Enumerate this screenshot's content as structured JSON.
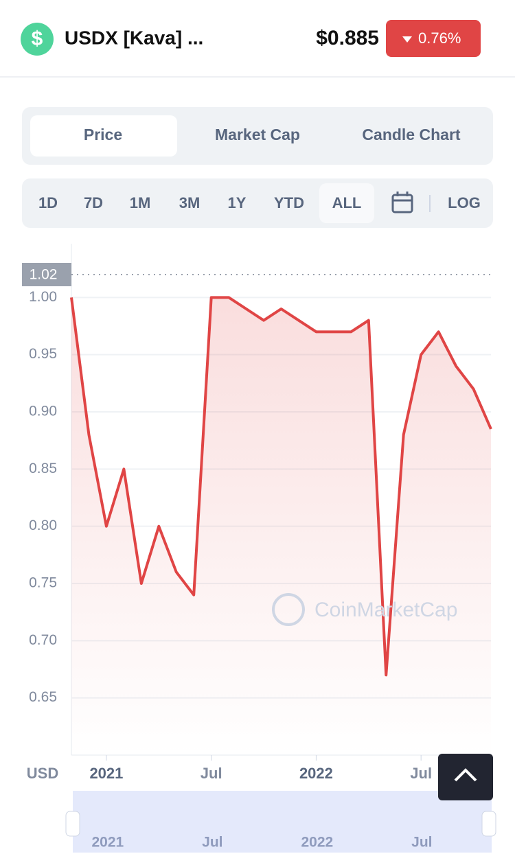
{
  "header": {
    "name": "USDX [Kava] ...",
    "price": "$0.885",
    "change": "0.76%"
  },
  "tabs": [
    "Price",
    "Market Cap",
    "Candle Chart"
  ],
  "ranges": [
    "1D",
    "7D",
    "1M",
    "3M",
    "1Y",
    "YTD",
    "ALL"
  ],
  "log_label": "LOG",
  "currency": "USD",
  "watermark": "CoinMarketCap",
  "chart_data": {
    "type": "line",
    "x": [
      "2020-11",
      "2020-12",
      "2021-01",
      "2021-02",
      "2021-03",
      "2021-04",
      "2021-05",
      "2021-06",
      "2021-07",
      "2021-08",
      "2021-09",
      "2021-10",
      "2021-11",
      "2021-12",
      "2022-01",
      "2022-02",
      "2022-03",
      "2022-04",
      "2022-05",
      "2022-06",
      "2022-07",
      "2022-08",
      "2022-09",
      "2022-10",
      "2022-11"
    ],
    "series": [
      {
        "name": "Price",
        "color": "#e04545",
        "values": [
          1.0,
          0.88,
          0.8,
          0.85,
          0.75,
          0.8,
          0.76,
          0.74,
          1.0,
          1.0,
          0.99,
          0.98,
          0.99,
          0.98,
          0.97,
          0.97,
          0.97,
          0.98,
          0.67,
          0.88,
          0.95,
          0.97,
          0.94,
          0.92,
          0.885
        ]
      }
    ],
    "max_value": 1.02,
    "xlim": [
      "2020-11",
      "2022-11"
    ],
    "xticks": [
      {
        "value": "2021-01",
        "label": "2021"
      },
      {
        "value": "2021-07",
        "label": "Jul"
      },
      {
        "value": "2022-01",
        "label": "2022"
      },
      {
        "value": "2022-07",
        "label": "Jul"
      }
    ],
    "ylim": [
      0.6,
      1.047
    ],
    "yticks": [
      0.65,
      {
        "value": 0.7,
        "label": "0.70"
      },
      0.75,
      {
        "value": 0.8,
        "label": "0.80"
      },
      0.85,
      {
        "value": 0.9,
        "label": "0.90"
      },
      0.95,
      {
        "value": 1.0,
        "label": "1.00"
      }
    ],
    "grid": true
  }
}
